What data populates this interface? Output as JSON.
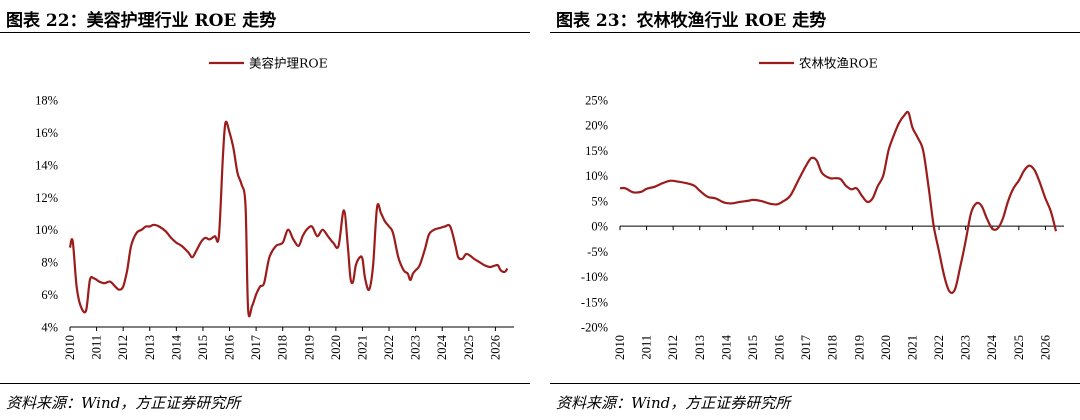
{
  "colors": {
    "line": "#9c1c1c",
    "axis": "#000000"
  },
  "charts": [
    {
      "title": "图表 22：美容护理行业 ROE 走势",
      "source": "资料来源：Wind，方正证券研究所",
      "chart_data": {
        "type": "line",
        "legend": "美容护理ROE",
        "legend_position": "top-center",
        "ylim": [
          4,
          18
        ],
        "yticks": [
          4,
          6,
          8,
          10,
          12,
          14,
          16,
          18
        ],
        "ytick_labels": [
          "4%",
          "6%",
          "8%",
          "10%",
          "12%",
          "14%",
          "16%",
          "18%"
        ],
        "xlim": [
          2010,
          2026.7
        ],
        "xticks": [
          2010,
          2011,
          2012,
          2013,
          2014,
          2015,
          2016,
          2017,
          2018,
          2019,
          2020,
          2021,
          2022,
          2023,
          2024,
          2025,
          2026
        ],
        "xtick_labels": [
          "2010",
          "2011",
          "2012",
          "2013",
          "2014",
          "2015",
          "2016",
          "2017",
          "2018",
          "2019",
          "2020",
          "2021",
          "2022",
          "2023",
          "2024",
          "2025",
          "2026"
        ],
        "grid": false,
        "series": [
          {
            "name": "美容护理ROE",
            "x": [
              2010.0,
              2010.1,
              2010.25,
              2010.4,
              2010.6,
              2010.75,
              2010.9,
              2011.1,
              2011.3,
              2011.5,
              2011.7,
              2011.85,
              2012.0,
              2012.15,
              2012.3,
              2012.5,
              2012.7,
              2012.85,
              2013.0,
              2013.15,
              2013.35,
              2013.6,
              2013.8,
              2014.0,
              2014.2,
              2014.45,
              2014.6,
              2014.75,
              2014.95,
              2015.1,
              2015.25,
              2015.45,
              2015.6,
              2015.75,
              2015.85,
              2016.0,
              2016.15,
              2016.3,
              2016.45,
              2016.6,
              2016.7,
              2016.85,
              2017.0,
              2017.15,
              2017.3,
              2017.5,
              2017.75,
              2018.0,
              2018.2,
              2018.4,
              2018.6,
              2018.75,
              2018.9,
              2019.1,
              2019.3,
              2019.5,
              2019.7,
              2019.9,
              2020.1,
              2020.3,
              2020.45,
              2020.55,
              2020.65,
              2020.75,
              2020.9,
              2021.0,
              2021.1,
              2021.25,
              2021.4,
              2021.55,
              2021.7,
              2021.85,
              2022.0,
              2022.15,
              2022.35,
              2022.55,
              2022.7,
              2022.8,
              2022.9,
              2023.0,
              2023.15,
              2023.35,
              2023.5,
              2023.7,
              2023.9,
              2024.1,
              2024.3,
              2024.5,
              2024.6,
              2024.75,
              2024.9,
              2025.05,
              2025.2,
              2025.4,
              2025.6,
              2025.8,
              2026.0,
              2026.1,
              2026.2,
              2026.35,
              2026.45
            ],
            "y": [
              8.9,
              9.3,
              6.5,
              5.3,
              5.0,
              6.9,
              7.0,
              6.8,
              6.7,
              6.8,
              6.5,
              6.3,
              6.5,
              7.5,
              9.0,
              9.8,
              10.0,
              10.2,
              10.2,
              10.3,
              10.2,
              9.9,
              9.5,
              9.2,
              9.0,
              8.6,
              8.3,
              8.7,
              9.3,
              9.5,
              9.4,
              9.6,
              9.6,
              14.5,
              16.6,
              16.0,
              15.0,
              13.5,
              12.8,
              11.5,
              5.1,
              5.3,
              6.0,
              6.5,
              6.7,
              8.3,
              9.0,
              9.2,
              10.0,
              9.4,
              9.0,
              9.6,
              10.0,
              10.2,
              9.6,
              10.0,
              9.6,
              9.2,
              9.0,
              11.2,
              9.0,
              7.0,
              6.8,
              7.8,
              8.3,
              8.2,
              7.0,
              6.3,
              7.8,
              11.4,
              11.0,
              10.5,
              10.2,
              9.8,
              8.3,
              7.5,
              7.3,
              6.9,
              7.3,
              7.5,
              7.8,
              8.8,
              9.7,
              10.0,
              10.1,
              10.2,
              10.2,
              9.0,
              8.3,
              8.2,
              8.5,
              8.4,
              8.2,
              8.0,
              7.8,
              7.7,
              7.8,
              7.8,
              7.5,
              7.4,
              7.6
            ]
          }
        ]
      }
    },
    {
      "title": "图表 23：农林牧渔行业 ROE 走势",
      "source": "资料来源：Wind，方正证券研究所",
      "chart_data": {
        "type": "line",
        "legend": "农林牧渔ROE",
        "legend_position": "top-center",
        "ylim": [
          -20,
          25
        ],
        "yticks": [
          -20,
          -15,
          -10,
          -5,
          0,
          5,
          10,
          15,
          20,
          25
        ],
        "ytick_labels": [
          "-20%",
          "-15%",
          "-10%",
          "-5%",
          "0%",
          "5%",
          "10%",
          "15%",
          "20%",
          "25%"
        ],
        "xlim": [
          2010,
          2026.7
        ],
        "xticks": [
          2010,
          2011,
          2012,
          2013,
          2014,
          2015,
          2016,
          2017,
          2018,
          2019,
          2020,
          2021,
          2022,
          2023,
          2024,
          2025,
          2026
        ],
        "xtick_labels": [
          "2010",
          "2011",
          "2012",
          "2013",
          "2014",
          "2015",
          "2016",
          "2017",
          "2018",
          "2019",
          "2020",
          "2021",
          "2022",
          "2023",
          "2024",
          "2025",
          "2026"
        ],
        "grid": false,
        "series": [
          {
            "name": "农林牧渔ROE",
            "x": [
              2010.0,
              2010.2,
              2010.5,
              2010.8,
              2011.0,
              2011.3,
              2011.6,
              2011.9,
              2012.2,
              2012.5,
              2012.8,
              2013.0,
              2013.3,
              2013.6,
              2013.9,
              2014.2,
              2014.5,
              2014.8,
              2015.0,
              2015.3,
              2015.6,
              2015.9,
              2016.1,
              2016.4,
              2016.7,
              2017.0,
              2017.2,
              2017.4,
              2017.6,
              2017.9,
              2018.1,
              2018.3,
              2018.5,
              2018.7,
              2018.9,
              2019.1,
              2019.3,
              2019.5,
              2019.7,
              2019.9,
              2020.1,
              2020.3,
              2020.5,
              2020.7,
              2020.85,
              2021.0,
              2021.2,
              2021.4,
              2021.6,
              2021.8,
              2022.0,
              2022.2,
              2022.4,
              2022.6,
              2022.8,
              2023.0,
              2023.2,
              2023.4,
              2023.6,
              2023.8,
              2024.0,
              2024.2,
              2024.4,
              2024.6,
              2024.8,
              2025.0,
              2025.2,
              2025.4,
              2025.6,
              2025.8,
              2026.0,
              2026.2,
              2026.4
            ],
            "y": [
              7.5,
              7.5,
              6.7,
              6.8,
              7.4,
              7.8,
              8.5,
              9.0,
              8.8,
              8.5,
              8.0,
              7.0,
              5.8,
              5.5,
              4.7,
              4.5,
              4.8,
              5.0,
              5.2,
              5.0,
              4.5,
              4.3,
              4.8,
              6.0,
              9.0,
              12.0,
              13.5,
              13.0,
              10.5,
              9.5,
              9.5,
              9.3,
              8.0,
              7.3,
              7.5,
              6.0,
              4.8,
              5.5,
              8.0,
              10.0,
              15.0,
              18.0,
              20.5,
              22.0,
              22.5,
              19.5,
              17.5,
              15.0,
              8.0,
              0.0,
              -5.0,
              -10.0,
              -13.0,
              -12.5,
              -8.0,
              -3.0,
              2.5,
              4.5,
              4.0,
              1.5,
              -0.5,
              -0.5,
              1.5,
              5.0,
              7.5,
              9.0,
              11.0,
              12.0,
              11.0,
              8.5,
              5.5,
              3.0,
              -1.0
            ]
          }
        ]
      }
    }
  ]
}
